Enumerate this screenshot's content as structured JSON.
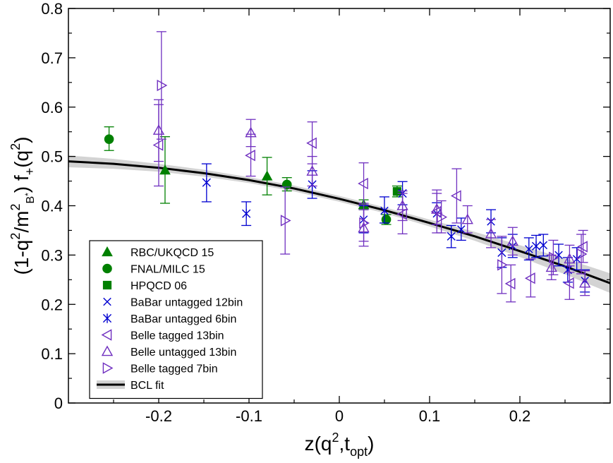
{
  "chart_data": {
    "type": "scatter",
    "xlabel": {
      "main": "z(q",
      "sup": "2",
      "mid": ",t",
      "sub": "opt",
      "end": ")"
    },
    "ylabel": {
      "p1": "(1-q",
      "s1": "2",
      "p2": "/m",
      "s2": "2",
      "p3": "B",
      "s3": "*",
      "p4": ")  f",
      "s4": "+",
      "p5": "(q",
      "s5": "2",
      "p6": ")"
    },
    "xlim": [
      -0.3,
      0.3
    ],
    "ylim": [
      0,
      0.8
    ],
    "xticks": [
      {
        "v": -0.2,
        "label": "-0.2"
      },
      {
        "v": -0.1,
        "label": "-0.1"
      },
      {
        "v": 0,
        "label": "0"
      },
      {
        "v": 0.1,
        "label": "0.1"
      },
      {
        "v": 0.2,
        "label": "0.2"
      }
    ],
    "yticks": [
      {
        "v": 0,
        "label": "0"
      },
      {
        "v": 0.1,
        "label": "0.1"
      },
      {
        "v": 0.2,
        "label": "0.2"
      },
      {
        "v": 0.3,
        "label": "0.3"
      },
      {
        "v": 0.4,
        "label": "0.4"
      },
      {
        "v": 0.5,
        "label": "0.5"
      },
      {
        "v": 0.6,
        "label": "0.6"
      },
      {
        "v": 0.7,
        "label": "0.7"
      },
      {
        "v": 0.8,
        "label": "0.8"
      }
    ],
    "legend_position": "bottom-left",
    "series": [
      {
        "name": "RBC/UKQCD 15",
        "marker": "triangle-filled",
        "color": "#008000",
        "points": [
          {
            "x": -0.193,
            "y": 0.472,
            "lo": 0.405,
            "hi": 0.54
          },
          {
            "x": -0.08,
            "y": 0.46,
            "lo": 0.422,
            "hi": 0.498
          },
          {
            "x": 0.027,
            "y": 0.402,
            "lo": 0.392,
            "hi": 0.412
          }
        ]
      },
      {
        "name": "FNAL/MILC 15",
        "marker": "circle-filled",
        "color": "#008000",
        "points": [
          {
            "x": -0.255,
            "y": 0.535,
            "lo": 0.512,
            "hi": 0.56
          },
          {
            "x": -0.058,
            "y": 0.443,
            "lo": 0.43,
            "hi": 0.457
          },
          {
            "x": 0.052,
            "y": 0.372,
            "lo": 0.362,
            "hi": 0.382
          }
        ]
      },
      {
        "name": "HPQCD 06",
        "marker": "square-filled",
        "color": "#008000",
        "points": [
          {
            "x": 0.064,
            "y": 0.429,
            "lo": 0.418,
            "hi": 0.44
          }
        ]
      },
      {
        "name": "BaBar untagged 12bin",
        "marker": "cross",
        "color": "#0000d0",
        "points": [
          {
            "x": 0.027,
            "y": 0.372,
            "lo": 0.345,
            "hi": 0.4
          },
          {
            "x": 0.05,
            "y": 0.39,
            "lo": 0.365,
            "hi": 0.418
          },
          {
            "x": 0.108,
            "y": 0.384,
            "lo": 0.362,
            "hi": 0.406
          },
          {
            "x": 0.135,
            "y": 0.352,
            "lo": 0.33,
            "hi": 0.375
          },
          {
            "x": 0.168,
            "y": 0.368,
            "lo": 0.345,
            "hi": 0.392
          },
          {
            "x": 0.192,
            "y": 0.318,
            "lo": 0.295,
            "hi": 0.342
          },
          {
            "x": 0.21,
            "y": 0.312,
            "lo": 0.29,
            "hi": 0.335
          },
          {
            "x": 0.226,
            "y": 0.32,
            "lo": 0.298,
            "hi": 0.342
          },
          {
            "x": 0.243,
            "y": 0.3,
            "lo": 0.278,
            "hi": 0.322
          },
          {
            "x": 0.263,
            "y": 0.292,
            "lo": 0.27,
            "hi": 0.315
          },
          {
            "x": 0.272,
            "y": 0.248,
            "lo": 0.225,
            "hi": 0.27
          }
        ]
      },
      {
        "name": "BaBar untagged 6bin",
        "marker": "star",
        "color": "#0000d0",
        "points": [
          {
            "x": -0.147,
            "y": 0.447,
            "lo": 0.408,
            "hi": 0.485
          },
          {
            "x": -0.103,
            "y": 0.384,
            "lo": 0.36,
            "hi": 0.408
          },
          {
            "x": -0.03,
            "y": 0.443,
            "lo": 0.415,
            "hi": 0.471
          },
          {
            "x": 0.07,
            "y": 0.425,
            "lo": 0.402,
            "hi": 0.449
          },
          {
            "x": 0.124,
            "y": 0.338,
            "lo": 0.315,
            "hi": 0.36
          },
          {
            "x": 0.18,
            "y": 0.305,
            "lo": 0.275,
            "hi": 0.335
          },
          {
            "x": 0.218,
            "y": 0.318,
            "lo": 0.295,
            "hi": 0.34
          },
          {
            "x": 0.253,
            "y": 0.27,
            "lo": 0.245,
            "hi": 0.295
          }
        ]
      },
      {
        "name": "Belle tagged 13bin",
        "marker": "triangle-left-open",
        "color": "#7030c0",
        "points": [
          {
            "x": -0.2,
            "y": 0.523,
            "lo": 0.44,
            "hi": 0.605
          },
          {
            "x": -0.098,
            "y": 0.502,
            "lo": 0.46,
            "hi": 0.545
          },
          {
            "x": -0.03,
            "y": 0.527,
            "lo": 0.485,
            "hi": 0.57
          },
          {
            "x": 0.027,
            "y": 0.445,
            "lo": 0.405,
            "hi": 0.487
          },
          {
            "x": 0.07,
            "y": 0.383,
            "lo": 0.343,
            "hi": 0.425
          },
          {
            "x": 0.108,
            "y": 0.388,
            "lo": 0.345,
            "hi": 0.432
          },
          {
            "x": 0.13,
            "y": 0.42,
            "lo": 0.365,
            "hi": 0.475
          },
          {
            "x": 0.19,
            "y": 0.242,
            "lo": 0.205,
            "hi": 0.28
          },
          {
            "x": 0.212,
            "y": 0.253,
            "lo": 0.215,
            "hi": 0.292
          },
          {
            "x": 0.255,
            "y": 0.243,
            "lo": 0.21,
            "hi": 0.278
          },
          {
            "x": 0.27,
            "y": 0.317,
            "lo": 0.285,
            "hi": 0.35
          }
        ]
      },
      {
        "name": "Belle untagged 13bin",
        "marker": "triangle-up-open",
        "color": "#7030c0",
        "points": [
          {
            "x": -0.2,
            "y": 0.553,
            "lo": 0.49,
            "hi": 0.615
          },
          {
            "x": -0.098,
            "y": 0.548,
            "lo": 0.52,
            "hi": 0.575
          },
          {
            "x": -0.03,
            "y": 0.47,
            "lo": 0.44,
            "hi": 0.5
          },
          {
            "x": 0.027,
            "y": 0.355,
            "lo": 0.318,
            "hi": 0.392
          },
          {
            "x": 0.07,
            "y": 0.4,
            "lo": 0.37,
            "hi": 0.43
          },
          {
            "x": 0.108,
            "y": 0.393,
            "lo": 0.362,
            "hi": 0.425
          },
          {
            "x": 0.142,
            "y": 0.372,
            "lo": 0.345,
            "hi": 0.4
          },
          {
            "x": 0.168,
            "y": 0.343,
            "lo": 0.315,
            "hi": 0.372
          },
          {
            "x": 0.192,
            "y": 0.328,
            "lo": 0.3,
            "hi": 0.356
          },
          {
            "x": 0.235,
            "y": 0.275,
            "lo": 0.25,
            "hi": 0.3
          },
          {
            "x": 0.255,
            "y": 0.292,
            "lo": 0.265,
            "hi": 0.32
          },
          {
            "x": 0.272,
            "y": 0.243,
            "lo": 0.218,
            "hi": 0.268
          }
        ]
      },
      {
        "name": "Belle tagged 7bin",
        "marker": "triangle-right-open",
        "color": "#7030c0",
        "points": [
          {
            "x": -0.197,
            "y": 0.644,
            "lo": 0.535,
            "hi": 0.753
          },
          {
            "x": -0.06,
            "y": 0.37,
            "lo": 0.302,
            "hi": 0.438
          },
          {
            "x": 0.027,
            "y": 0.365,
            "lo": 0.328,
            "hi": 0.402
          },
          {
            "x": 0.113,
            "y": 0.377,
            "lo": 0.345,
            "hi": 0.41
          },
          {
            "x": 0.18,
            "y": 0.28,
            "lo": 0.222,
            "hi": 0.338
          },
          {
            "x": 0.237,
            "y": 0.295,
            "lo": 0.26,
            "hi": 0.33
          },
          {
            "x": 0.268,
            "y": 0.302,
            "lo": 0.262,
            "hi": 0.342
          }
        ]
      }
    ],
    "fit": {
      "name": "BCL fit",
      "color": "#000000",
      "band_color": "#d3d3d3",
      "x": [
        -0.3,
        -0.25,
        -0.2,
        -0.15,
        -0.1,
        -0.05,
        0.0,
        0.05,
        0.1,
        0.15,
        0.2,
        0.25,
        0.3
      ],
      "y": [
        0.49,
        0.485,
        0.477,
        0.466,
        0.452,
        0.435,
        0.414,
        0.391,
        0.365,
        0.338,
        0.308,
        0.277,
        0.243
      ],
      "band": [
        0.012,
        0.01,
        0.008,
        0.007,
        0.006,
        0.006,
        0.006,
        0.006,
        0.007,
        0.009,
        0.012,
        0.016,
        0.02
      ]
    }
  }
}
